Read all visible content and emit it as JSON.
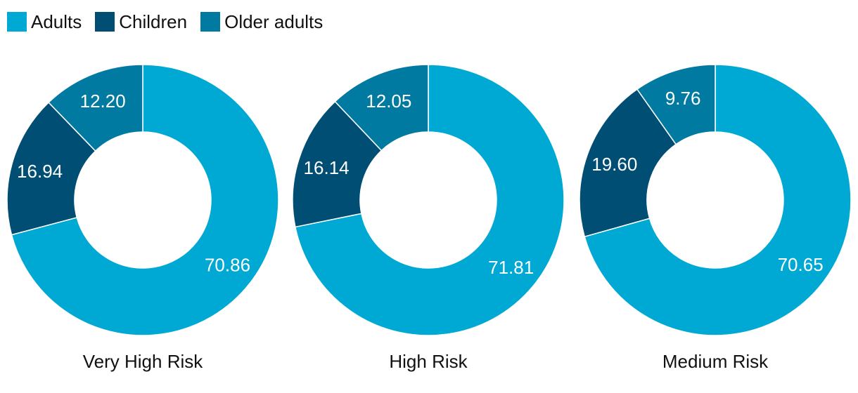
{
  "legend": {
    "items": [
      {
        "label": "Adults",
        "color": "#00a9d4"
      },
      {
        "label": "Children",
        "color": "#004e73"
      },
      {
        "label": "Older adults",
        "color": "#007aa0"
      }
    ]
  },
  "chart_data": [
    {
      "type": "donut",
      "title": "Very High Risk",
      "categories": [
        "Adults",
        "Children",
        "Older adults"
      ],
      "values": [
        70.86,
        16.94,
        12.2
      ],
      "value_labels": [
        "70.86",
        "16.94",
        "12.20"
      ]
    },
    {
      "type": "donut",
      "title": "High Risk",
      "categories": [
        "Adults",
        "Children",
        "Older adults"
      ],
      "values": [
        71.81,
        16.14,
        12.05
      ],
      "value_labels": [
        "71.81",
        "16.14",
        "12.05"
      ]
    },
    {
      "type": "donut",
      "title": "Medium Risk",
      "categories": [
        "Adults",
        "Children",
        "Older adults"
      ],
      "values": [
        70.65,
        19.6,
        9.76
      ],
      "value_labels": [
        "70.65",
        "19.60",
        "9.76"
      ]
    }
  ]
}
